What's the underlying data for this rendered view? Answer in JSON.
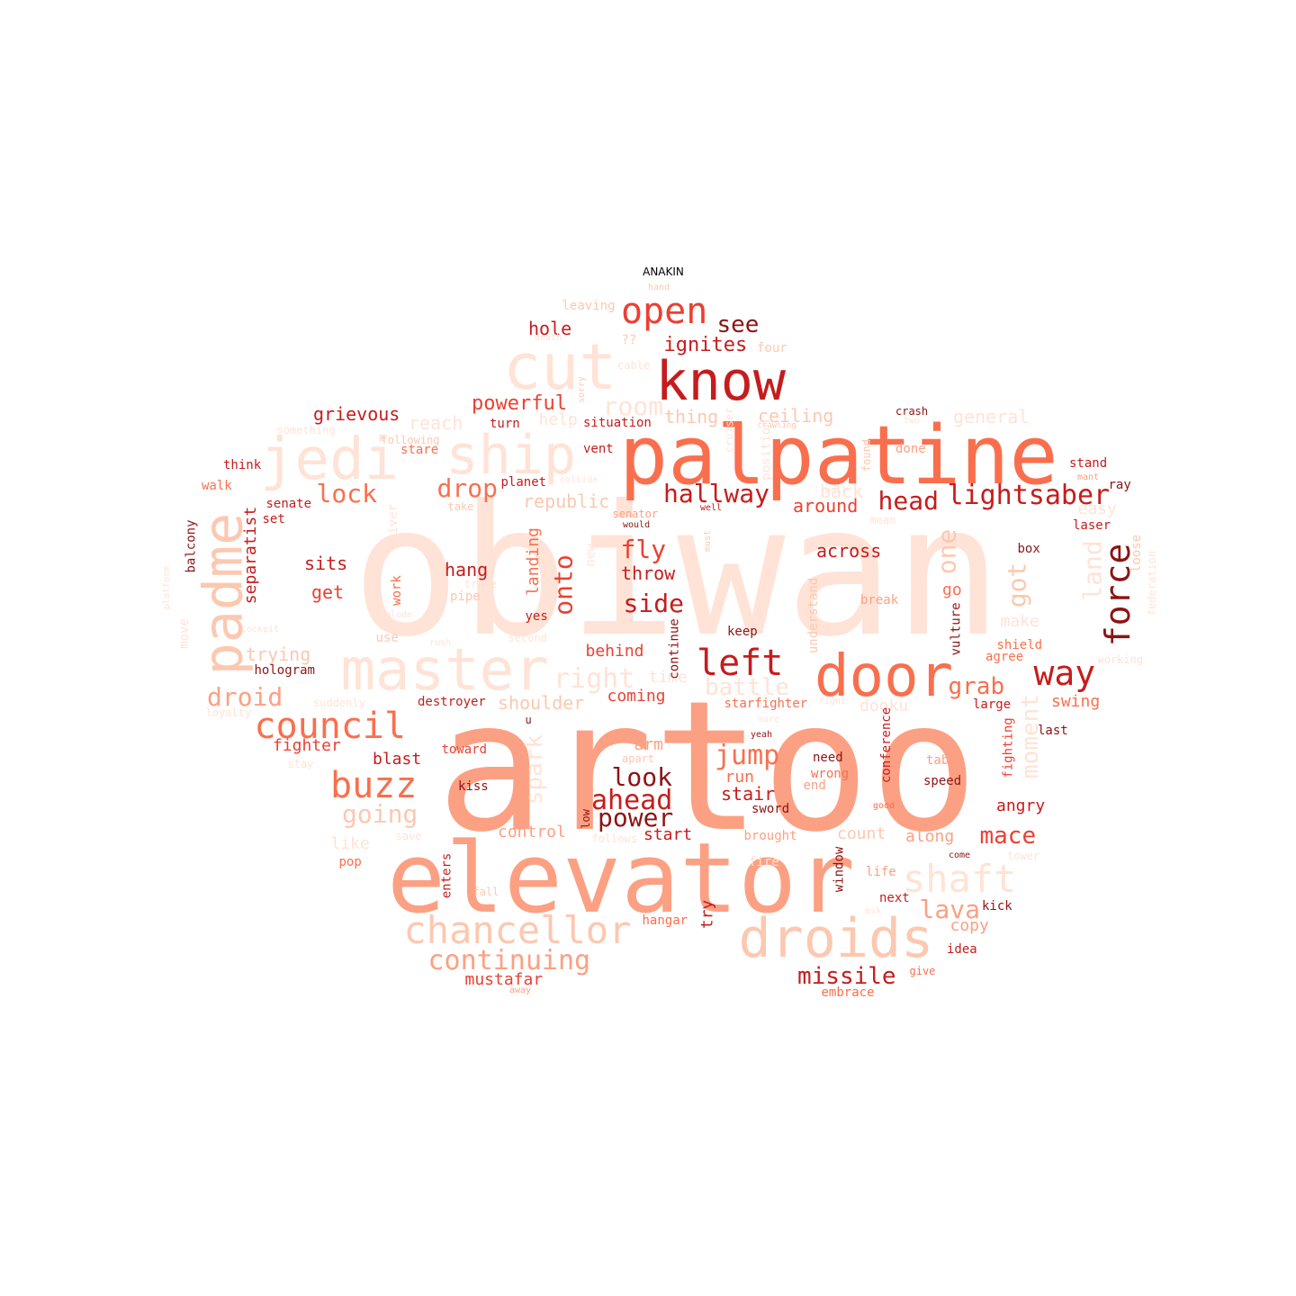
{
  "title": "ANAKIN",
  "colors": {
    "c1": "#ffe3d6",
    "c2": "#fcc8b0",
    "c3": "#fca083",
    "c4": "#f96f4e",
    "c5": "#eb4032",
    "c6": "#c61c1d",
    "c7": "#8c1414"
  },
  "words": [
    {
      "text": "obiwan",
      "color": "c1"
    },
    {
      "text": "artoo",
      "color": "c3"
    },
    {
      "text": "elevator",
      "color": "c3"
    },
    {
      "text": "palpatine",
      "color": "c4"
    },
    {
      "text": "know",
      "color": "c6"
    },
    {
      "text": "cut",
      "color": "c1"
    },
    {
      "text": "jedi",
      "color": "c1"
    },
    {
      "text": "ship",
      "color": "c1"
    },
    {
      "text": "padme",
      "color": "c2"
    },
    {
      "text": "master",
      "color": "c1"
    },
    {
      "text": "door",
      "color": "c4"
    },
    {
      "text": "droids",
      "color": "c2"
    },
    {
      "text": "chancellor",
      "color": "c2"
    },
    {
      "text": "open",
      "color": "c5"
    },
    {
      "text": "council",
      "color": "c4"
    },
    {
      "text": "buzz",
      "color": "c4"
    },
    {
      "text": "shaft",
      "color": "c1"
    },
    {
      "text": "left",
      "color": "c6"
    },
    {
      "text": "way",
      "color": "c6"
    },
    {
      "text": "force",
      "color": "c7"
    },
    {
      "text": "lightsaber",
      "color": "c6"
    },
    {
      "text": "hallway",
      "color": "c6"
    },
    {
      "text": "head",
      "color": "c6"
    },
    {
      "text": "see",
      "color": "c7"
    },
    {
      "text": "ignites",
      "color": "c6"
    },
    {
      "text": "powerful",
      "color": "c5"
    },
    {
      "text": "room",
      "color": "c1"
    },
    {
      "text": "drop",
      "color": "c4"
    },
    {
      "text": "lock",
      "color": "c4"
    },
    {
      "text": "droid",
      "color": "c3"
    },
    {
      "text": "fly",
      "color": "c5"
    },
    {
      "text": "side",
      "color": "c6"
    },
    {
      "text": "onto",
      "color": "c5"
    },
    {
      "text": "jump",
      "color": "c4"
    },
    {
      "text": "look",
      "color": "c7"
    },
    {
      "text": "ahead",
      "color": "c6"
    },
    {
      "text": "power",
      "color": "c7"
    },
    {
      "text": "grab",
      "color": "c4"
    },
    {
      "text": "mace",
      "color": "c5"
    },
    {
      "text": "missile",
      "color": "c6"
    },
    {
      "text": "continuing",
      "color": "c3"
    },
    {
      "text": "going",
      "color": "c2"
    },
    {
      "text": "lava",
      "color": "c3"
    },
    {
      "text": "one",
      "color": "c2"
    },
    {
      "text": "got",
      "color": "c2"
    },
    {
      "text": "land",
      "color": "c1"
    },
    {
      "text": "right",
      "color": "c1"
    },
    {
      "text": "battle",
      "color": "c1"
    },
    {
      "text": "moment",
      "color": "c1"
    },
    {
      "text": "spark",
      "color": "c1"
    },
    {
      "text": "hole",
      "color": "c6"
    },
    {
      "text": "grievous",
      "color": "c6"
    },
    {
      "text": "reach",
      "color": "c1"
    },
    {
      "text": "help",
      "color": "c1"
    },
    {
      "text": "thing",
      "color": "c2"
    },
    {
      "text": "ceiling",
      "color": "c2"
    },
    {
      "text": "general",
      "color": "c1"
    },
    {
      "text": "republic",
      "color": "c2"
    },
    {
      "text": "back",
      "color": "c1"
    },
    {
      "text": "around",
      "color": "c5"
    },
    {
      "text": "across",
      "color": "c6"
    },
    {
      "text": "throw",
      "color": "c6"
    },
    {
      "text": "hang",
      "color": "c6"
    },
    {
      "text": "landing",
      "color": "c4"
    },
    {
      "text": "sits",
      "color": "c6"
    },
    {
      "text": "get",
      "color": "c5"
    },
    {
      "text": "separatist",
      "color": "c6"
    },
    {
      "text": "trying",
      "color": "c2"
    },
    {
      "text": "behind",
      "color": "c5"
    },
    {
      "text": "coming",
      "color": "c5"
    },
    {
      "text": "shoulder",
      "color": "c2"
    },
    {
      "text": "fighter",
      "color": "c5"
    },
    {
      "text": "blast",
      "color": "c6"
    },
    {
      "text": "arm",
      "color": "c3"
    },
    {
      "text": "run",
      "color": "c4"
    },
    {
      "text": "stair",
      "color": "c6"
    },
    {
      "text": "control",
      "color": "c3"
    },
    {
      "text": "start",
      "color": "c6"
    },
    {
      "text": "count",
      "color": "c2"
    },
    {
      "text": "along",
      "color": "c3"
    },
    {
      "text": "mustafar",
      "color": "c5"
    },
    {
      "text": "copy",
      "color": "c3"
    },
    {
      "text": "angry",
      "color": "c6"
    },
    {
      "text": "swing",
      "color": "c4"
    },
    {
      "text": "easy",
      "color": "c1"
    },
    {
      "text": "dooku",
      "color": "c1"
    },
    {
      "text": "time",
      "color": "c1"
    },
    {
      "text": "make",
      "color": "c1"
    },
    {
      "text": "go",
      "color": "c4"
    },
    {
      "text": "like",
      "color": "c1"
    },
    {
      "text": "try",
      "color": "c6"
    },
    {
      "text": "hologram",
      "color": "c7"
    },
    {
      "text": "starfighter",
      "color": "c4"
    },
    {
      "text": "destroyer",
      "color": "c6"
    },
    {
      "text": "toward",
      "color": "c5"
    },
    {
      "text": "kiss",
      "color": "c7"
    },
    {
      "text": "need",
      "color": "c7"
    },
    {
      "text": "wrong",
      "color": "c4"
    },
    {
      "text": "speed",
      "color": "c7"
    },
    {
      "text": "table",
      "color": "c3"
    },
    {
      "text": "conference",
      "color": "c6"
    },
    {
      "text": "fighting",
      "color": "c5"
    },
    {
      "text": "brought",
      "color": "c3"
    },
    {
      "text": "enters",
      "color": "c6"
    },
    {
      "text": "hangar",
      "color": "c4"
    },
    {
      "text": "next",
      "color": "c6"
    },
    {
      "text": "kick",
      "color": "c7"
    },
    {
      "text": "idea",
      "color": "c6"
    },
    {
      "text": "embrace",
      "color": "c4"
    },
    {
      "text": "window",
      "color": "c7"
    },
    {
      "text": "life",
      "color": "c3"
    },
    {
      "text": "pop",
      "color": "c4"
    },
    {
      "text": "vent",
      "color": "c6"
    },
    {
      "text": "stare",
      "color": "c4"
    },
    {
      "text": "turn",
      "color": "c6"
    },
    {
      "text": "situation",
      "color": "c6"
    },
    {
      "text": "planet",
      "color": "c6"
    },
    {
      "text": "think",
      "color": "c6"
    },
    {
      "text": "walk",
      "color": "c4"
    },
    {
      "text": "senate",
      "color": "c6"
    },
    {
      "text": "set",
      "color": "c6"
    },
    {
      "text": "balcony",
      "color": "c7"
    },
    {
      "text": "stand",
      "color": "c6"
    },
    {
      "text": "ray",
      "color": "c7"
    },
    {
      "text": "laser",
      "color": "c6"
    },
    {
      "text": "box",
      "color": "c7"
    },
    {
      "text": "break",
      "color": "c3"
    },
    {
      "text": "keep",
      "color": "c7"
    },
    {
      "text": "vulture",
      "color": "c7"
    },
    {
      "text": "shield",
      "color": "c4"
    },
    {
      "text": "agree",
      "color": "c4"
    },
    {
      "text": "large",
      "color": "c6"
    },
    {
      "text": "last",
      "color": "c7"
    },
    {
      "text": "use",
      "color": "c2"
    },
    {
      "text": "yes",
      "color": "c6"
    },
    {
      "text": "work",
      "color": "c4"
    },
    {
      "text": "continue",
      "color": "c7"
    },
    {
      "text": "sword",
      "color": "c7"
    },
    {
      "text": "end",
      "color": "c3"
    },
    {
      "text": "u",
      "color": "c7"
    },
    {
      "text": "pipe",
      "color": "c2"
    },
    {
      "text": "apart",
      "color": "c2"
    },
    {
      "text": "hand",
      "color": "c2"
    },
    {
      "text": "leaving",
      "color": "c2"
    },
    {
      "text": "??",
      "color": "c2"
    },
    {
      "text": "four",
      "color": "c2"
    },
    {
      "text": "sorry",
      "color": "c2"
    },
    {
      "text": "crawling",
      "color": "c2"
    },
    {
      "text": "crash",
      "color": "c7"
    },
    {
      "text": "done",
      "color": "c3"
    },
    {
      "text": "mant",
      "color": "c3"
    },
    {
      "text": "would",
      "color": "c7"
    },
    {
      "text": "senator",
      "color": "c3"
    },
    {
      "text": "take",
      "color": "c2"
    },
    {
      "text": "found",
      "color": "c2"
    },
    {
      "text": "loose",
      "color": "c2"
    },
    {
      "text": "federation",
      "color": "c1"
    },
    {
      "text": "working",
      "color": "c1"
    },
    {
      "text": "river",
      "color": "c1"
    },
    {
      "text": "move",
      "color": "c1"
    },
    {
      "text": "platform",
      "color": "c1"
    },
    {
      "text": "understand",
      "color": "c2"
    },
    {
      "text": "suddenly",
      "color": "c1"
    },
    {
      "text": "loyalty",
      "color": "c1"
    },
    {
      "text": "stay",
      "color": "c1"
    },
    {
      "text": "save",
      "color": "c1"
    },
    {
      "text": "follows",
      "color": "c1"
    },
    {
      "text": "tower",
      "color": "c1"
    },
    {
      "text": "fall",
      "color": "c2"
    },
    {
      "text": "ask",
      "color": "c1"
    },
    {
      "text": "give",
      "color": "c4"
    },
    {
      "text": "away",
      "color": "c3"
    },
    {
      "text": "following",
      "color": "c2"
    },
    {
      "text": "second",
      "color": "c1"
    },
    {
      "text": "fight",
      "color": "c1"
    },
    {
      "text": "sure",
      "color": "c1"
    },
    {
      "text": "yeah",
      "color": "c7"
    },
    {
      "text": "come",
      "color": "c7"
    },
    {
      "text": "good",
      "color": "c4"
    },
    {
      "text": "must",
      "color": "c2"
    },
    {
      "text": "collide",
      "color": "c1"
    },
    {
      "text": "low",
      "color": "c7"
    },
    {
      "text": "well",
      "color": "c6"
    },
    {
      "text": "new",
      "color": "c1"
    },
    {
      "text": "trade",
      "color": "c1"
    },
    {
      "text": "two",
      "color": "c1"
    },
    {
      "text": "death",
      "color": "c1"
    },
    {
      "text": "something",
      "color": "c1"
    },
    {
      "text": "position",
      "color": "c1"
    },
    {
      "text": "cruiser",
      "color": "c1"
    },
    {
      "text": "cockpit",
      "color": "c1"
    },
    {
      "text": "explode",
      "color": "c1"
    },
    {
      "text": "mean",
      "color": "c1"
    },
    {
      "text": "fire",
      "color": "c1"
    },
    {
      "text": "pull",
      "color": "c1"
    },
    {
      "text": "cable",
      "color": "c1"
    },
    {
      "text": "rush",
      "color": "c1"
    },
    {
      "text": "tight",
      "color": "c1"
    },
    {
      "text": "meter",
      "color": "c1"
    },
    {
      "text": "crane",
      "color": "c1"
    },
    {
      "text": "point",
      "color": "c1"
    },
    {
      "text": "...",
      "color": "c1"
    }
  ]
}
